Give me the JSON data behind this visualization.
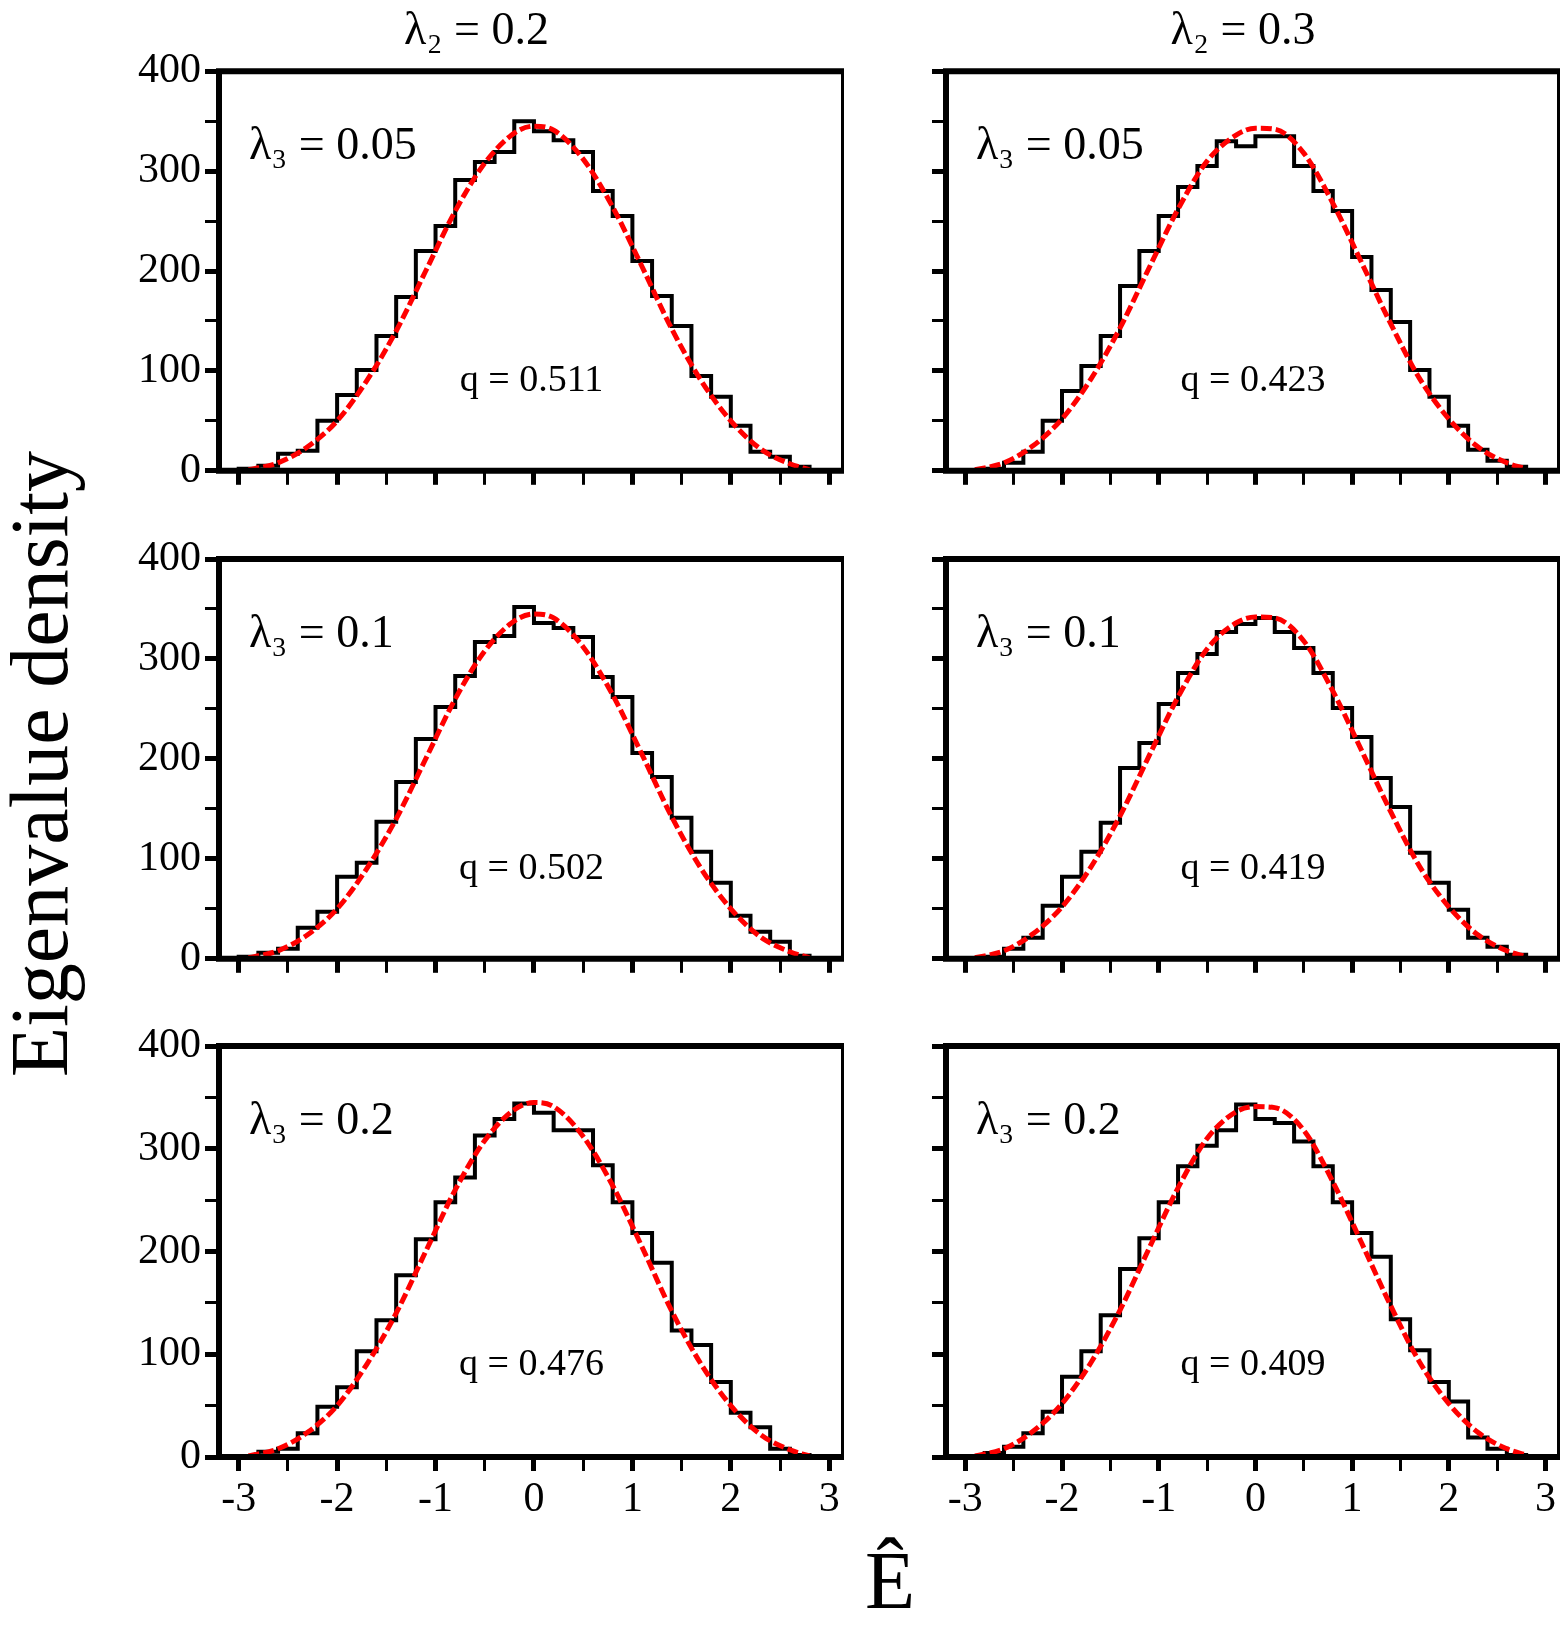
{
  "chart_data": [
    {
      "type": "histogram",
      "title": "λ₂ = 0.2",
      "annotations": [
        "λ₃ = 0.05",
        "q = 0.511"
      ],
      "xlim": [
        -3.2,
        3.15
      ],
      "ylim": [
        0,
        400
      ],
      "xticks": [
        -3,
        {
          "value": -2.5,
          "label": null
        },
        -2,
        {
          "value": -1.5,
          "label": null
        },
        -1,
        {
          "value": -0.5,
          "label": null
        },
        0,
        {
          "value": 0.5,
          "label": null
        },
        1,
        {
          "value": 1.5,
          "label": null
        },
        2,
        {
          "value": 2.5,
          "label": null
        },
        3
      ],
      "yticks": [
        0,
        {
          "value": 50,
          "label": null
        },
        100,
        {
          "value": 150,
          "label": null
        },
        200,
        {
          "value": 250,
          "label": null
        },
        300,
        {
          "value": 350,
          "label": null
        },
        400
      ],
      "tick_labels": "y",
      "bins": [
        -3,
        -2.8,
        -2.6,
        -2.4,
        -2.2,
        -2,
        -1.8,
        -1.6,
        -1.4,
        -1.2,
        -1,
        -0.8,
        -0.6,
        -0.4,
        -0.2,
        0,
        0.2,
        0.4,
        0.6,
        0.8,
        1,
        1.2,
        1.4,
        1.6,
        1.8,
        2,
        2.2,
        2.4,
        2.6,
        2.8,
        3
      ],
      "series": [
        {
          "type": "histogram",
          "color": "#000000",
          "values": [
            2,
            5,
            17,
            20,
            50,
            76,
            101,
            135,
            174,
            220,
            245,
            291,
            309,
            319,
            350,
            340,
            331,
            319,
            280,
            255,
            210,
            175,
            145,
            95,
            74,
            45,
            19,
            14,
            4,
            0
          ]
        },
        {
          "type": "line",
          "color": "#ff0000",
          "line_style": "dashed",
          "x": [
            -2.9,
            -2.6,
            -2.3,
            -2,
            -1.7,
            -1.4,
            -1.1,
            -0.8,
            -0.5,
            -0.2,
            0,
            0.2,
            0.5,
            0.8,
            1.1,
            1.4,
            1.7,
            2,
            2.3,
            2.6,
            2.8
          ],
          "values": [
            1,
            8,
            24,
            50,
            90,
            140,
            200,
            260,
            308,
            338,
            345,
            341,
            312,
            264,
            204,
            142,
            90,
            50,
            22,
            7,
            1
          ]
        }
      ]
    },
    {
      "type": "histogram",
      "title": "λ₂ = 0.3",
      "annotations": [
        "λ₃ = 0.05",
        "q = 0.423"
      ],
      "xlim": [
        -3.2,
        3.15
      ],
      "ylim": [
        0,
        400
      ],
      "xticks": [
        -3,
        {
          "value": -2.5,
          "label": null
        },
        -2,
        {
          "value": -1.5,
          "label": null
        },
        -1,
        {
          "value": -0.5,
          "label": null
        },
        0,
        {
          "value": 0.5,
          "label": null
        },
        1,
        {
          "value": 1.5,
          "label": null
        },
        2,
        {
          "value": 2.5,
          "label": null
        },
        3
      ],
      "yticks": [
        0,
        {
          "value": 50,
          "label": null
        },
        100,
        {
          "value": 150,
          "label": null
        },
        200,
        {
          "value": 250,
          "label": null
        },
        300,
        {
          "value": 350,
          "label": null
        },
        400
      ],
      "tick_labels": false,
      "bins": [
        -3,
        -2.8,
        -2.6,
        -2.4,
        -2.2,
        -2,
        -1.8,
        -1.6,
        -1.4,
        -1.2,
        -1,
        -0.8,
        -0.6,
        -0.4,
        -0.2,
        0,
        0.2,
        0.4,
        0.6,
        0.8,
        1,
        1.2,
        1.4,
        1.6,
        1.8,
        2,
        2.2,
        2.4,
        2.6,
        2.8,
        3
      ],
      "series": [
        {
          "type": "histogram",
          "color": "#000000",
          "values": [
            0,
            2,
            8,
            19,
            50,
            80,
            105,
            135,
            185,
            220,
            255,
            284,
            305,
            330,
            325,
            335,
            335,
            305,
            280,
            260,
            214,
            181,
            149,
            101,
            74,
            45,
            21,
            10,
            4,
            0
          ]
        },
        {
          "type": "line",
          "color": "#ff0000",
          "line_style": "dashed",
          "x": [
            -2.9,
            -2.6,
            -2.3,
            -2,
            -1.7,
            -1.4,
            -1.1,
            -0.8,
            -0.5,
            -0.2,
            0,
            0.2,
            0.5,
            0.8,
            1.1,
            1.4,
            1.7,
            2,
            2.3,
            2.6,
            2.8
          ],
          "values": [
            1,
            8,
            25,
            52,
            92,
            143,
            203,
            262,
            310,
            336,
            343,
            342,
            318,
            268,
            208,
            147,
            92,
            52,
            24,
            8,
            2
          ]
        }
      ]
    },
    {
      "type": "histogram",
      "ylabel": "Eigenvalue density",
      "annotations": [
        "λ₃ = 0.1",
        "q = 0.502"
      ],
      "xlim": [
        -3.2,
        3.15
      ],
      "ylim": [
        0,
        400
      ],
      "xticks": [
        -3,
        {
          "value": -2.5,
          "label": null
        },
        -2,
        {
          "value": -1.5,
          "label": null
        },
        -1,
        {
          "value": -0.5,
          "label": null
        },
        0,
        {
          "value": 0.5,
          "label": null
        },
        1,
        {
          "value": 1.5,
          "label": null
        },
        2,
        {
          "value": 2.5,
          "label": null
        },
        3
      ],
      "yticks": [
        0,
        {
          "value": 50,
          "label": null
        },
        100,
        {
          "value": 150,
          "label": null
        },
        200,
        {
          "value": 250,
          "label": null
        },
        300,
        {
          "value": 350,
          "label": null
        },
        400
      ],
      "tick_labels": "y",
      "bins": [
        -3,
        -2.8,
        -2.6,
        -2.4,
        -2.2,
        -2,
        -1.8,
        -1.6,
        -1.4,
        -1.2,
        -1,
        -0.8,
        -0.6,
        -0.4,
        -0.2,
        0,
        0.2,
        0.4,
        0.6,
        0.8,
        1,
        1.2,
        1.4,
        1.6,
        1.8,
        2,
        2.2,
        2.4,
        2.6,
        2.8,
        3
      ],
      "series": [
        {
          "type": "histogram",
          "color": "#000000",
          "values": [
            2,
            6,
            10,
            31,
            47,
            82,
            96,
            137,
            177,
            220,
            252,
            283,
            317,
            323,
            352,
            336,
            331,
            322,
            282,
            262,
            206,
            182,
            141,
            107,
            76,
            43,
            27,
            17,
            3,
            0
          ]
        },
        {
          "type": "line",
          "color": "#ff0000",
          "line_style": "dashed",
          "x": [
            -2.9,
            -2.6,
            -2.3,
            -2,
            -1.7,
            -1.4,
            -1.1,
            -0.8,
            -0.5,
            -0.2,
            0,
            0.2,
            0.5,
            0.8,
            1.1,
            1.4,
            1.7,
            2,
            2.3,
            2.6,
            2.8
          ],
          "values": [
            1,
            8,
            24,
            50,
            90,
            140,
            200,
            260,
            308,
            338,
            345,
            341,
            312,
            264,
            204,
            142,
            90,
            50,
            22,
            7,
            1
          ]
        }
      ]
    },
    {
      "type": "histogram",
      "annotations": [
        "λ₃ = 0.1",
        "q = 0.419"
      ],
      "xlim": [
        -3.2,
        3.15
      ],
      "ylim": [
        0,
        400
      ],
      "xticks": [
        -3,
        {
          "value": -2.5,
          "label": null
        },
        -2,
        {
          "value": -1.5,
          "label": null
        },
        -1,
        {
          "value": -0.5,
          "label": null
        },
        0,
        {
          "value": 0.5,
          "label": null
        },
        1,
        {
          "value": 1.5,
          "label": null
        },
        2,
        {
          "value": 2.5,
          "label": null
        },
        3
      ],
      "yticks": [
        0,
        {
          "value": 50,
          "label": null
        },
        100,
        {
          "value": 150,
          "label": null
        },
        200,
        {
          "value": 250,
          "label": null
        },
        300,
        {
          "value": 350,
          "label": null
        },
        400
      ],
      "tick_labels": false,
      "bins": [
        -3,
        -2.8,
        -2.6,
        -2.4,
        -2.2,
        -2,
        -1.8,
        -1.6,
        -1.4,
        -1.2,
        -1,
        -0.8,
        -0.6,
        -0.4,
        -0.2,
        0,
        0.2,
        0.4,
        0.6,
        0.8,
        1,
        1.2,
        1.4,
        1.6,
        1.8,
        2,
        2.2,
        2.4,
        2.6,
        2.8,
        3
      ],
      "series": [
        {
          "type": "histogram",
          "color": "#000000",
          "values": [
            0,
            2,
            10,
            21,
            53,
            82,
            107,
            136,
            191,
            216,
            255,
            286,
            305,
            327,
            335,
            341,
            327,
            311,
            286,
            251,
            222,
            181,
            152,
            106,
            76,
            49,
            21,
            12,
            4,
            0
          ]
        },
        {
          "type": "line",
          "color": "#ff0000",
          "line_style": "dashed",
          "x": [
            -2.9,
            -2.6,
            -2.3,
            -2,
            -1.7,
            -1.4,
            -1.1,
            -0.8,
            -0.5,
            -0.2,
            0,
            0.2,
            0.5,
            0.8,
            1.1,
            1.4,
            1.7,
            2,
            2.3,
            2.6,
            2.8
          ],
          "values": [
            1,
            8,
            25,
            52,
            92,
            143,
            203,
            262,
            310,
            336,
            342,
            341,
            318,
            268,
            208,
            147,
            92,
            52,
            24,
            8,
            2
          ]
        }
      ]
    },
    {
      "type": "histogram",
      "annotations": [
        "λ₃ = 0.2",
        "q = 0.476"
      ],
      "xlim": [
        -3.2,
        3.15
      ],
      "ylim": [
        0,
        400
      ],
      "xticks": [
        -3,
        {
          "value": -2.5,
          "label": null
        },
        -2,
        {
          "value": -1.5,
          "label": null
        },
        -1,
        {
          "value": -0.5,
          "label": null
        },
        0,
        {
          "value": 0.5,
          "label": null
        },
        1,
        {
          "value": 1.5,
          "label": null
        },
        2,
        {
          "value": 2.5,
          "label": null
        },
        3
      ],
      "yticks": [
        0,
        {
          "value": 50,
          "label": null
        },
        100,
        {
          "value": 150,
          "label": null
        },
        200,
        {
          "value": 250,
          "label": null
        },
        300,
        {
          "value": 350,
          "label": null
        },
        400
      ],
      "bins": [
        -3,
        -2.8,
        -2.6,
        -2.4,
        -2.2,
        -2,
        -1.8,
        -1.6,
        -1.4,
        -1.2,
        -1,
        -0.8,
        -0.6,
        -0.4,
        -0.2,
        0,
        0.2,
        0.4,
        0.6,
        0.8,
        1,
        1.2,
        1.4,
        1.6,
        1.8,
        2,
        2.2,
        2.4,
        2.6,
        2.8,
        3
      ],
      "series": [
        {
          "type": "histogram",
          "color": "#000000",
          "values": [
            1,
            5,
            8,
            23,
            49,
            68,
            103,
            133,
            177,
            212,
            248,
            272,
            313,
            329,
            344,
            335,
            318,
            318,
            284,
            248,
            218,
            189,
            123,
            109,
            73,
            43,
            29,
            8,
            2,
            0
          ]
        },
        {
          "type": "line",
          "color": "#ff0000",
          "line_style": "dashed",
          "x": [
            -2.9,
            -2.6,
            -2.3,
            -2,
            -1.7,
            -1.4,
            -1.1,
            -0.8,
            -0.5,
            -0.2,
            0,
            0.2,
            0.5,
            0.8,
            1.1,
            1.4,
            1.7,
            2,
            2.3,
            2.6,
            2.8
          ],
          "values": [
            1,
            8,
            24,
            50,
            90,
            140,
            200,
            260,
            308,
            338,
            345,
            341,
            312,
            264,
            204,
            142,
            90,
            50,
            22,
            7,
            1
          ]
        }
      ]
    },
    {
      "type": "histogram",
      "xlabel": "Ê",
      "annotations": [
        "λ₃ = 0.2",
        "q = 0.409"
      ],
      "xlim": [
        -3.2,
        3.15
      ],
      "ylim": [
        0,
        400
      ],
      "xticks": [
        -3,
        {
          "value": -2.5,
          "label": null
        },
        -2,
        {
          "value": -1.5,
          "label": null
        },
        -1,
        {
          "value": -0.5,
          "label": null
        },
        0,
        {
          "value": 0.5,
          "label": null
        },
        1,
        {
          "value": 1.5,
          "label": null
        },
        2,
        {
          "value": 2.5,
          "label": null
        },
        3
      ],
      "yticks": [
        0,
        {
          "value": 50,
          "label": null
        },
        100,
        {
          "value": 150,
          "label": null
        },
        200,
        {
          "value": 250,
          "label": null
        },
        300,
        {
          "value": 350,
          "label": null
        },
        400
      ],
      "tick_labels": "x",
      "bins": [
        -3,
        -2.8,
        -2.6,
        -2.4,
        -2.2,
        -2,
        -1.8,
        -1.6,
        -1.4,
        -1.2,
        -1,
        -0.8,
        -0.6,
        -0.4,
        -0.2,
        0,
        0.2,
        0.4,
        0.6,
        0.8,
        1,
        1.2,
        1.4,
        1.6,
        1.8,
        2,
        2.2,
        2.4,
        2.6,
        2.8,
        3
      ],
      "series": [
        {
          "type": "histogram",
          "color": "#000000",
          "values": [
            0,
            4,
            10,
            23,
            44,
            78,
            103,
            138,
            183,
            213,
            248,
            283,
            303,
            318,
            343,
            329,
            325,
            307,
            283,
            248,
            218,
            195,
            134,
            104,
            73,
            54,
            19,
            8,
            2,
            0
          ]
        },
        {
          "type": "line",
          "color": "#ff0000",
          "line_style": "dashed",
          "x": [
            -2.9,
            -2.6,
            -2.3,
            -2,
            -1.7,
            -1.4,
            -1.1,
            -0.8,
            -0.5,
            -0.2,
            0,
            0.2,
            0.5,
            0.8,
            1.1,
            1.4,
            1.7,
            2,
            2.3,
            2.6,
            2.8
          ],
          "values": [
            1,
            8,
            25,
            52,
            92,
            143,
            203,
            262,
            310,
            336,
            341,
            340,
            318,
            268,
            208,
            147,
            92,
            52,
            24,
            8,
            2
          ]
        }
      ]
    }
  ]
}
